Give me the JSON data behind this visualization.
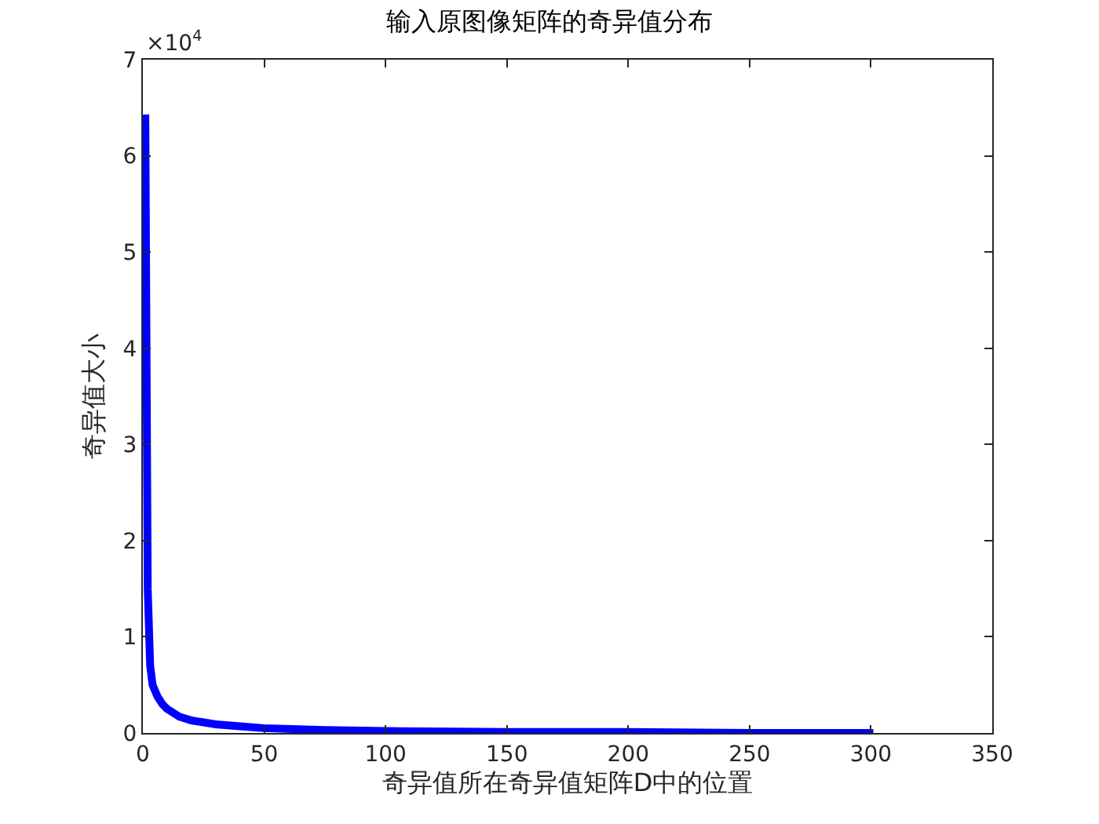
{
  "chart_data": {
    "type": "line",
    "title": "输入原图像矩阵的奇异值分布",
    "xlabel": "奇异值所在奇异值矩阵D中的位置",
    "ylabel": "奇异值大小",
    "annotations": [
      "×10$^{4}$"
    ],
    "series": [
      {
        "color": "#0000ff",
        "x": [
          1,
          2,
          3,
          4,
          6,
          8,
          10,
          15,
          20,
          30,
          40,
          50,
          75,
          100,
          150,
          200,
          250,
          301
        ],
        "values": [
          6.43,
          1.5,
          0.7,
          0.5,
          0.38,
          0.3,
          0.25,
          0.17,
          0.13,
          0.09,
          0.07,
          0.05,
          0.03,
          0.02,
          0.01,
          0.01,
          0,
          0
        ]
      }
    ],
    "xlim": [
      0,
      350
    ],
    "xticks": [
      0,
      50,
      100,
      150,
      200,
      250,
      300,
      350
    ],
    "ylim": [
      0,
      7
    ],
    "yticks": [
      0,
      1,
      2,
      3,
      4,
      5,
      6,
      7
    ],
    "grid": false,
    "marker": "none",
    "line_style": "solid"
  }
}
